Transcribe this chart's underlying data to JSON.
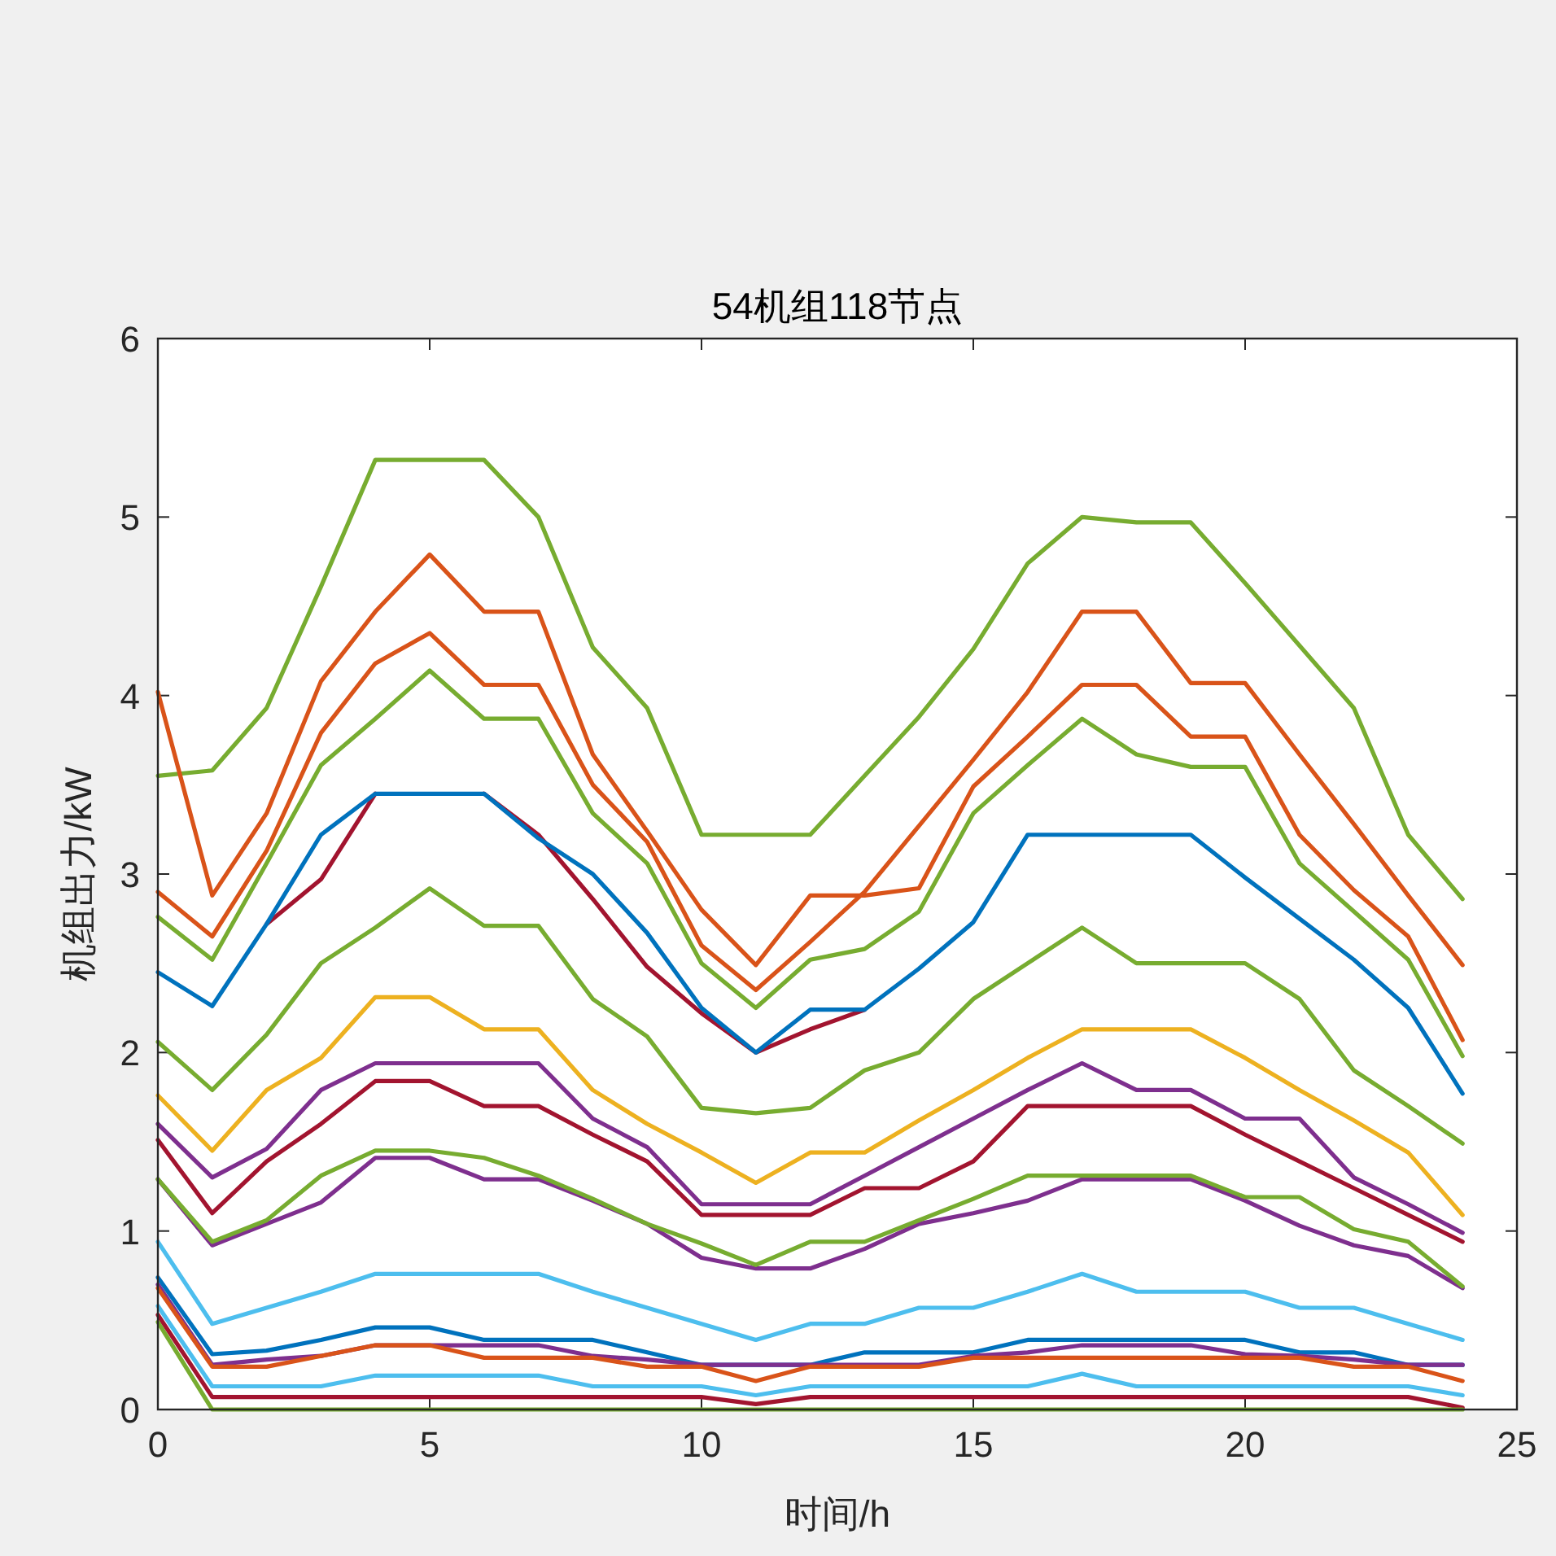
{
  "chart_data": {
    "type": "line",
    "title": "54机组118节点",
    "xlabel": "时间/h",
    "ylabel": "机组出力/kW",
    "x": [
      0,
      1,
      2,
      3,
      4,
      5,
      6,
      7,
      8,
      9,
      10,
      11,
      12,
      13,
      14,
      15,
      16,
      17,
      18,
      19,
      20,
      21,
      22,
      23,
      24
    ],
    "xlim": [
      0,
      25
    ],
    "xticks": [
      0,
      5,
      10,
      15,
      20,
      25
    ],
    "ylim": [
      0,
      6
    ],
    "yticks": [
      0,
      1,
      2,
      3,
      4,
      5,
      6
    ],
    "grid": false,
    "marker": "none",
    "line_style": "solid",
    "series": [
      {
        "color": "#77ac30",
        "values": [
          3.55,
          3.58,
          3.93,
          4.61,
          5.32,
          5.32,
          5.32,
          5.0,
          4.27,
          3.93,
          3.22,
          3.22,
          3.22,
          3.55,
          3.88,
          4.26,
          4.74,
          5.0,
          4.97,
          4.97,
          4.63,
          4.28,
          3.93,
          3.22,
          2.86
        ]
      },
      {
        "color": "#d95319",
        "values": [
          4.02,
          2.88,
          3.34,
          4.08,
          4.47,
          4.79,
          4.47,
          4.47,
          3.67,
          3.24,
          2.8,
          2.49,
          2.88,
          2.88,
          2.92,
          3.49,
          3.77,
          4.06,
          4.06,
          3.77,
          3.77,
          3.22,
          2.91,
          2.65,
          2.07
        ]
      },
      {
        "color": "#d95319",
        "values": [
          2.9,
          2.65,
          3.13,
          3.79,
          4.18,
          4.35,
          4.06,
          4.06,
          3.5,
          3.18,
          2.6,
          2.35,
          2.62,
          2.9,
          3.27,
          3.64,
          4.02,
          4.47,
          4.47,
          4.07,
          4.07,
          3.67,
          3.28,
          2.88,
          2.49
        ]
      },
      {
        "color": "#77ac30",
        "values": [
          2.76,
          2.52,
          3.06,
          3.61,
          3.87,
          4.14,
          3.87,
          3.87,
          3.34,
          3.06,
          2.5,
          2.25,
          2.52,
          2.58,
          2.79,
          3.34,
          3.61,
          3.87,
          3.67,
          3.6,
          3.6,
          3.06,
          2.79,
          2.52,
          1.98
        ]
      },
      {
        "color": "#a2142f",
        "values": [
          null,
          null,
          2.72,
          2.97,
          3.45,
          null,
          3.45,
          3.22,
          2.86,
          2.48,
          2.22,
          2.0,
          2.13,
          2.24,
          null,
          null,
          null,
          null,
          null,
          null,
          null,
          null,
          null,
          null,
          null
        ]
      },
      {
        "color": "#0072bd",
        "values": [
          2.45,
          2.26,
          2.72,
          3.22,
          3.45,
          3.45,
          3.45,
          3.2,
          3.0,
          2.67,
          2.25,
          2.0,
          2.24,
          2.24,
          2.47,
          2.73,
          3.22,
          3.22,
          3.22,
          3.22,
          2.98,
          2.75,
          2.52,
          2.25,
          1.77
        ]
      },
      {
        "color": "#77ac30",
        "values": [
          2.06,
          1.79,
          2.1,
          2.5,
          2.7,
          2.92,
          2.71,
          2.71,
          2.3,
          2.09,
          1.69,
          1.66,
          1.69,
          1.9,
          2.0,
          2.3,
          2.5,
          2.7,
          2.5,
          2.5,
          2.5,
          2.3,
          1.9,
          1.7,
          1.49
        ]
      },
      {
        "color": "#edb120",
        "values": [
          1.76,
          1.45,
          1.79,
          1.97,
          2.31,
          2.31,
          2.13,
          2.13,
          1.79,
          1.6,
          1.44,
          1.27,
          1.44,
          1.44,
          1.62,
          1.79,
          1.97,
          2.13,
          2.13,
          2.13,
          1.97,
          1.79,
          1.62,
          1.44,
          1.09
        ]
      },
      {
        "color": "#7e2f8e",
        "values": [
          1.6,
          1.3,
          1.46,
          1.79,
          1.94,
          1.94,
          1.94,
          1.94,
          1.63,
          1.47,
          1.15,
          1.15,
          1.15,
          1.31,
          1.47,
          1.63,
          1.79,
          1.94,
          1.79,
          1.79,
          1.63,
          1.63,
          1.3,
          1.15,
          0.99
        ]
      },
      {
        "color": "#a2142f",
        "values": [
          1.51,
          1.1,
          1.39,
          1.6,
          1.84,
          1.84,
          1.7,
          1.7,
          1.54,
          1.39,
          1.09,
          1.09,
          1.09,
          1.24,
          1.24,
          1.39,
          1.7,
          1.7,
          1.7,
          1.7,
          1.54,
          1.39,
          1.24,
          1.09,
          0.94
        ]
      },
      {
        "color": "#7e2f8e",
        "values": [
          1.29,
          0.92,
          1.04,
          1.16,
          1.41,
          1.41,
          1.29,
          1.29,
          1.17,
          1.04,
          0.85,
          0.79,
          0.79,
          0.9,
          1.04,
          1.1,
          1.17,
          1.29,
          1.29,
          1.29,
          1.17,
          1.03,
          0.92,
          0.86,
          0.68
        ]
      },
      {
        "color": "#77ac30",
        "values": [
          1.29,
          0.94,
          1.06,
          1.31,
          1.45,
          1.45,
          1.41,
          1.31,
          1.18,
          1.04,
          0.93,
          0.81,
          0.94,
          0.94,
          1.06,
          1.18,
          1.31,
          1.31,
          1.31,
          1.31,
          1.19,
          1.19,
          1.01,
          0.94,
          0.69
        ]
      },
      {
        "color": "#4dbeee",
        "values": [
          0.94,
          0.48,
          0.57,
          0.66,
          0.76,
          0.76,
          0.76,
          0.76,
          0.66,
          0.57,
          0.48,
          0.39,
          0.48,
          0.48,
          0.57,
          0.57,
          0.66,
          0.76,
          0.66,
          0.66,
          0.66,
          0.57,
          0.57,
          0.48,
          0.39
        ]
      },
      {
        "color": "#0072bd",
        "values": [
          0.74,
          0.31,
          0.33,
          0.39,
          0.46,
          0.46,
          0.39,
          0.39,
          0.39,
          0.32,
          0.25,
          0.25,
          0.25,
          0.32,
          0.32,
          0.32,
          0.39,
          0.39,
          0.39,
          0.39,
          0.39,
          0.32,
          0.32,
          0.25,
          0.25
        ]
      },
      {
        "color": "#7e2f8e",
        "values": [
          0.7,
          0.25,
          0.28,
          0.3,
          0.36,
          0.36,
          0.36,
          0.36,
          0.3,
          0.28,
          0.25,
          0.25,
          0.25,
          0.25,
          0.25,
          0.3,
          0.32,
          0.36,
          0.36,
          0.36,
          0.31,
          0.3,
          0.28,
          0.25,
          0.25
        ]
      },
      {
        "color": "#d95319",
        "values": [
          0.68,
          0.24,
          0.24,
          0.3,
          0.36,
          0.36,
          0.29,
          0.29,
          0.29,
          0.24,
          0.24,
          0.16,
          0.24,
          0.24,
          0.24,
          0.29,
          0.29,
          0.29,
          0.29,
          0.29,
          0.29,
          0.29,
          0.24,
          0.24,
          0.16
        ]
      },
      {
        "color": "#4dbeee",
        "values": [
          0.58,
          0.13,
          0.13,
          0.13,
          0.19,
          0.19,
          0.19,
          0.19,
          0.13,
          0.13,
          0.13,
          0.08,
          0.13,
          0.13,
          0.13,
          0.13,
          0.13,
          0.2,
          0.13,
          0.13,
          0.13,
          0.13,
          0.13,
          0.13,
          0.08
        ]
      },
      {
        "color": "#a2142f",
        "values": [
          0.53,
          0.07,
          0.07,
          0.07,
          0.07,
          0.07,
          0.07,
          0.07,
          0.07,
          0.07,
          0.07,
          0.03,
          0.07,
          0.07,
          0.07,
          0.07,
          0.07,
          0.07,
          0.07,
          0.07,
          0.07,
          0.07,
          0.07,
          0.07,
          0.01
        ]
      },
      {
        "color": "#77ac30",
        "values": [
          0.49,
          0,
          0,
          0,
          0,
          0,
          0,
          0,
          0,
          0,
          0,
          0,
          0,
          0,
          0,
          0,
          0,
          0,
          0,
          0,
          0,
          0,
          0,
          0,
          0
        ]
      }
    ]
  }
}
